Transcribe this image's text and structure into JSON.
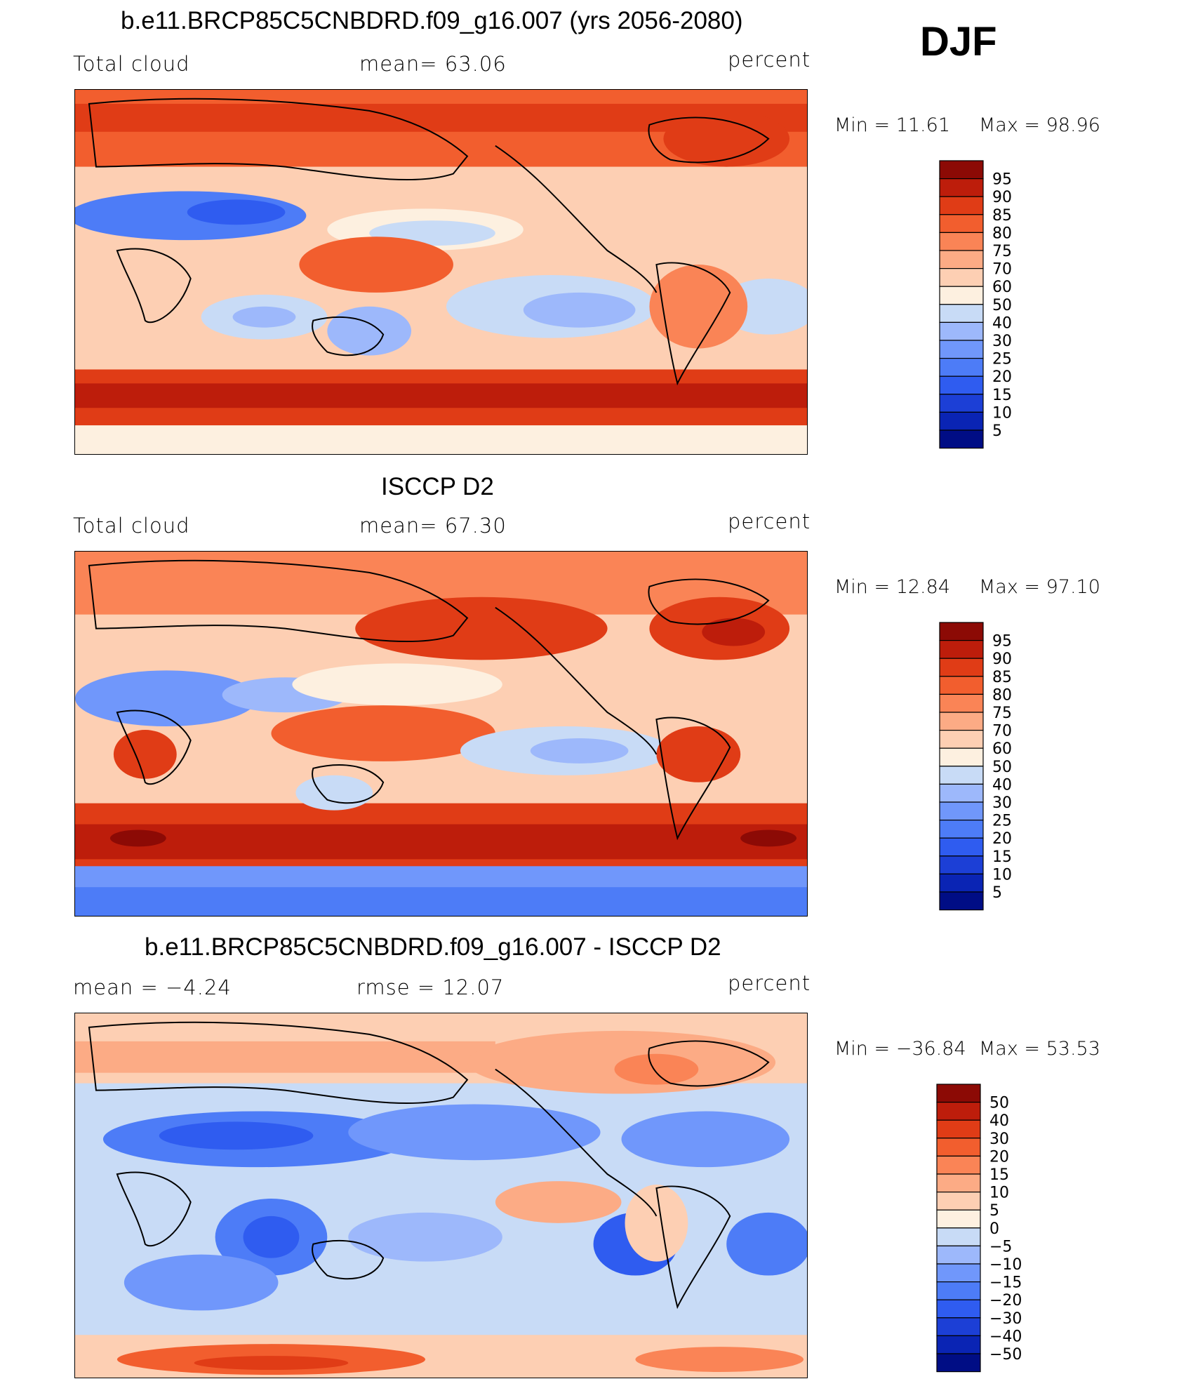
{
  "season": "DJF",
  "colors": {
    "model_levels": [
      "#000d85",
      "#0a24b4",
      "#1c3fd6",
      "#2f5cf0",
      "#4d7cf7",
      "#7097fb",
      "#9db8fb",
      "#c8dbf6",
      "#fdf0e0",
      "#fdcfb3",
      "#fcab85",
      "#fa8456",
      "#f25e2e",
      "#e03c16",
      "#bd1d0b",
      "#8c0a05"
    ],
    "diff_levels": [
      "#000d85",
      "#0a24b4",
      "#1c3fd6",
      "#2f5cf0",
      "#4d7cf7",
      "#7097fb",
      "#9db8fb",
      "#c8dbf6",
      "#fdf0e0",
      "#fdcfb3",
      "#fcab85",
      "#fa8456",
      "#f25e2e",
      "#e03c16",
      "#bd1d0b",
      "#8c0a05"
    ]
  },
  "panels": [
    {
      "title": "b.e11.BRCP85C5CNBDRD.f09_g16.007 (yrs 2056-2080)",
      "left_label": "Total cloud",
      "center_label": "mean=   63.06",
      "right_label": "percent",
      "min_label": "Min =   11.61",
      "max_label": "Max =   98.96",
      "colorbar_labels": [
        "95",
        "90",
        "85",
        "80",
        "75",
        "70",
        "60",
        "50",
        "40",
        "30",
        "25",
        "20",
        "15",
        "10",
        "5"
      ]
    },
    {
      "title": "ISCCP D2",
      "left_label": "Total cloud",
      "center_label": "mean=   67.30",
      "right_label": "percent",
      "min_label": "Min =   12.84",
      "max_label": "Max =   97.10",
      "colorbar_labels": [
        "95",
        "90",
        "85",
        "80",
        "75",
        "70",
        "60",
        "50",
        "40",
        "30",
        "25",
        "20",
        "15",
        "10",
        "5"
      ]
    },
    {
      "title": "b.e11.BRCP85C5CNBDRD.f09_g16.007 - ISCCP D2",
      "left_label": "mean =   −4.24",
      "center_label": "rmse =   12.07",
      "right_label": "percent",
      "min_label": "Min = −36.84",
      "max_label": "Max =   53.53",
      "colorbar_labels": [
        "50",
        "40",
        "30",
        "20",
        "15",
        "10",
        "5",
        "0",
        "−5",
        "−10",
        "−15",
        "−20",
        "−30",
        "−40",
        "−50"
      ]
    }
  ]
}
